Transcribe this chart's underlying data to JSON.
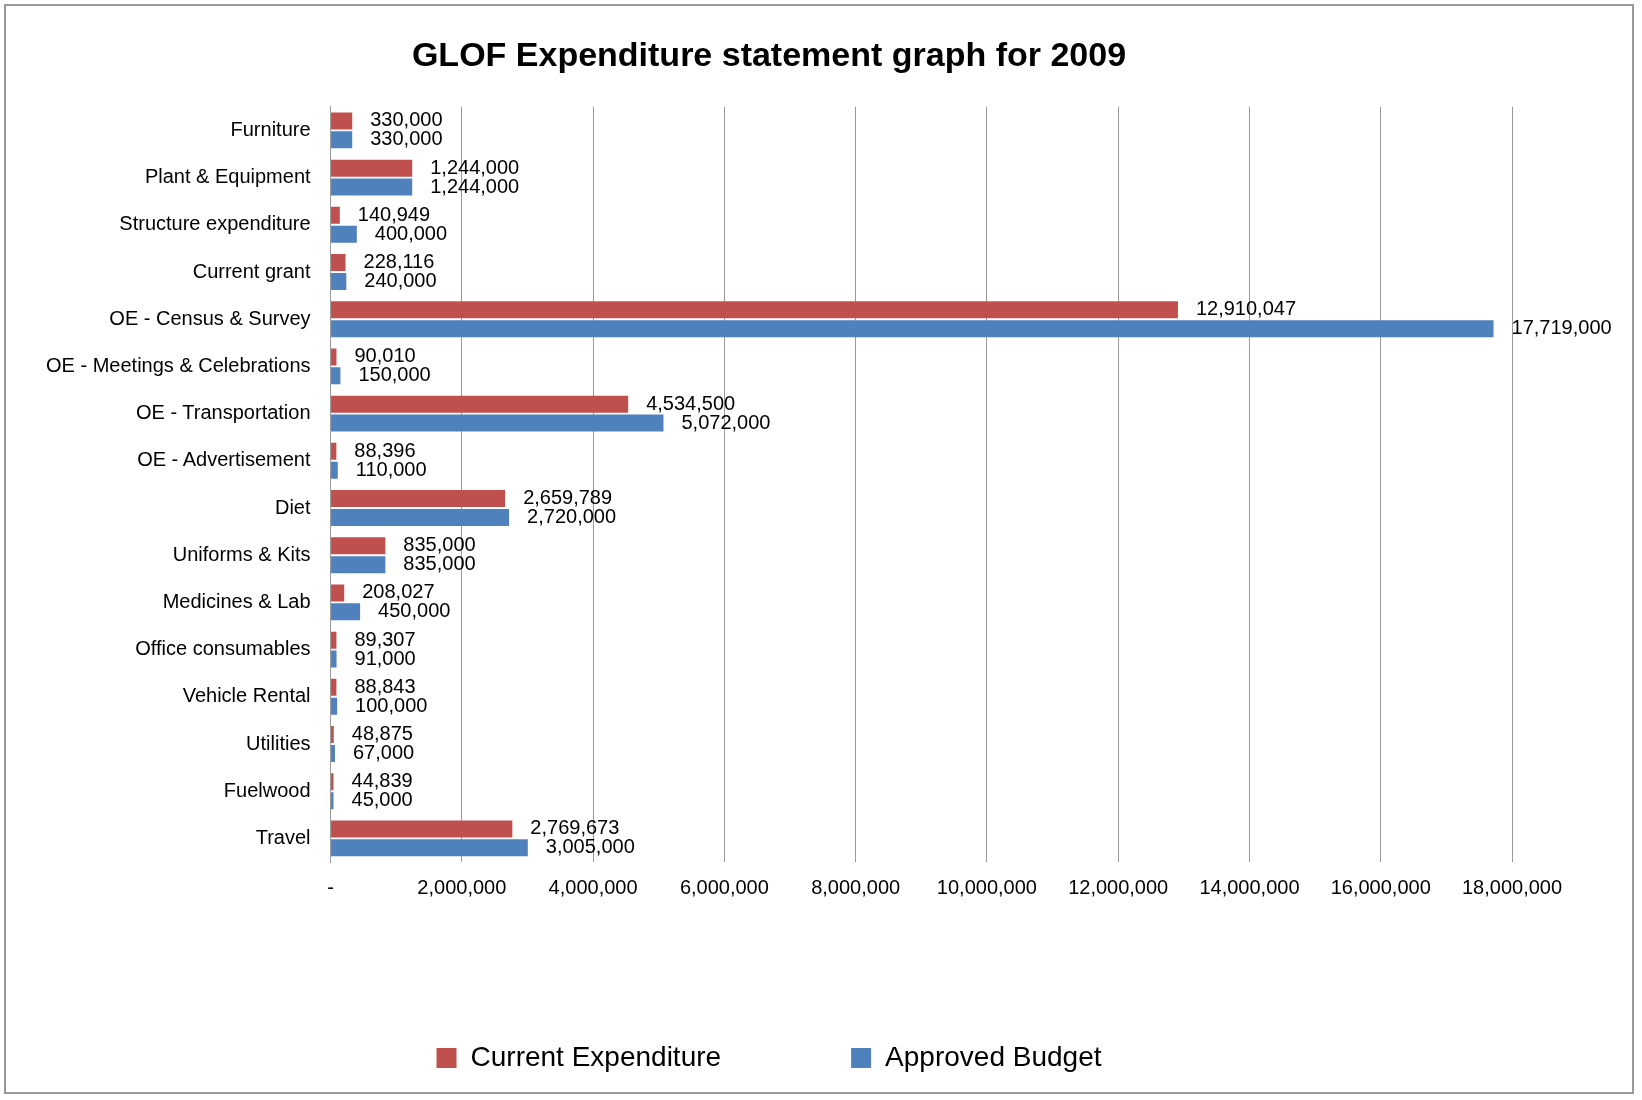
{
  "chart_data": {
    "type": "bar",
    "orientation": "horizontal",
    "title": "GLOF Expenditure statement graph for 2009",
    "categories": [
      "Furniture",
      "Plant & Equipment",
      "Structure expenditure",
      "Current grant",
      "OE - Census & Survey",
      "OE - Meetings & Celebrations",
      "OE - Transportation",
      "OE - Advertisement",
      "Diet",
      "Uniforms & Kits",
      "Medicines & Lab",
      "Office consumables",
      "Vehicle Rental",
      "Utilities",
      "Fuelwood",
      "Travel"
    ],
    "series": [
      {
        "name": "Current Expenditure",
        "color": "#c0504d",
        "values": [
          330000,
          1244000,
          140949,
          228116,
          12910047,
          90010,
          4534500,
          88396,
          2659789,
          835000,
          208027,
          89307,
          88843,
          48875,
          44839,
          2769673
        ],
        "value_labels": [
          "330,000",
          "1,244,000",
          "140,949",
          "228,116",
          "12,910,047",
          "90,010",
          "4,534,500",
          "88,396",
          "2,659,789",
          "835,000",
          "208,027",
          "89,307",
          "88,843",
          "48,875",
          "44,839",
          "2,769,673"
        ]
      },
      {
        "name": "Approved Budget",
        "color": "#4f81bd",
        "values": [
          330000,
          1244000,
          400000,
          240000,
          17719000,
          150000,
          5072000,
          110000,
          2720000,
          835000,
          450000,
          91000,
          100000,
          67000,
          45000,
          3005000
        ],
        "value_labels": [
          "330,000",
          "1,244,000",
          "400,000",
          "240,000",
          "17,719,000",
          "150,000",
          "5,072,000",
          "110,000",
          "2,720,000",
          "835,000",
          "450,000",
          "91,000",
          "100,000",
          "67,000",
          "45,000",
          "3,005,000"
        ]
      }
    ],
    "xlim": [
      0,
      18000000
    ],
    "xticks": [
      {
        "value": 0,
        "label": "-"
      },
      {
        "value": 2000000,
        "label": "2,000,000"
      },
      {
        "value": 4000000,
        "label": "4,000,000"
      },
      {
        "value": 6000000,
        "label": "6,000,000"
      },
      {
        "value": 8000000,
        "label": "8,000,000"
      },
      {
        "value": 10000000,
        "label": "10,000,000"
      },
      {
        "value": 12000000,
        "label": "12,000,000"
      },
      {
        "value": 14000000,
        "label": "14,000,000"
      },
      {
        "value": 16000000,
        "label": "16,000,000"
      },
      {
        "value": 18000000,
        "label": "18,000,000"
      }
    ],
    "grid": "x",
    "legend": "bottom"
  }
}
